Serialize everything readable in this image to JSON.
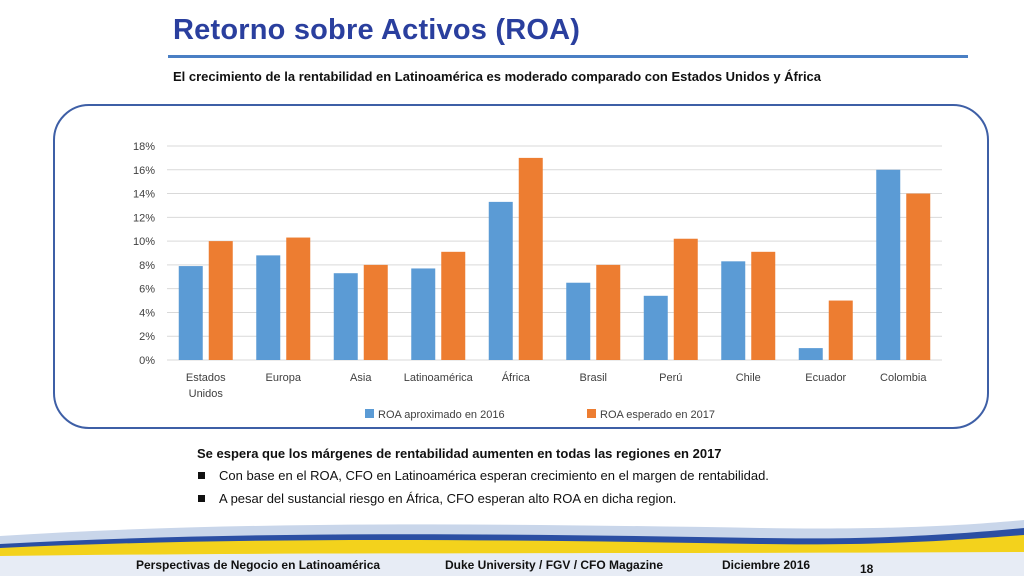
{
  "header": {
    "title": "Retorno sobre Activos (ROA)",
    "subtitle": "El crecimiento de la rentabilidad en Latinoamérica es moderado comparado con Estados Unidos y África"
  },
  "chart_data": {
    "type": "bar",
    "categories": [
      "Estados Unidos",
      "Europa",
      "Asia",
      "Latinoamérica",
      "África",
      "Brasil",
      "Perú",
      "Chile",
      "Ecuador",
      "Colombia"
    ],
    "series": [
      {
        "name": "ROA aproximado en 2016",
        "color": "#5b9bd5",
        "values": [
          7.9,
          8.8,
          7.3,
          7.7,
          13.3,
          6.5,
          5.4,
          8.3,
          1.0,
          16.0
        ]
      },
      {
        "name": "ROA esperado en 2017",
        "color": "#ed7d31",
        "values": [
          10.0,
          10.3,
          8.0,
          9.1,
          17.0,
          8.0,
          10.2,
          9.1,
          5.0,
          14.0
        ]
      }
    ],
    "ylim": [
      0,
      18
    ],
    "yticks": [
      "0%",
      "2%",
      "4%",
      "6%",
      "8%",
      "10%",
      "12%",
      "14%",
      "16%",
      "18%"
    ],
    "grid": true,
    "legend": "bottom"
  },
  "notes": {
    "heading": "Se espera que los márgenes de rentabilidad aumenten en todas las regiones en 2017",
    "bullets": [
      "Con base en el ROA, CFO en Latinoamérica esperan crecimiento en el margen de rentabilidad.",
      "A pesar del sustancial riesgo en África, CFO esperan alto ROA en dicha region."
    ]
  },
  "footer": {
    "left": "Perspectivas de Negocio en Latinoamérica",
    "center": "Duke University / FGV / CFO Magazine",
    "date": "Diciembre 2016",
    "page": "18"
  }
}
